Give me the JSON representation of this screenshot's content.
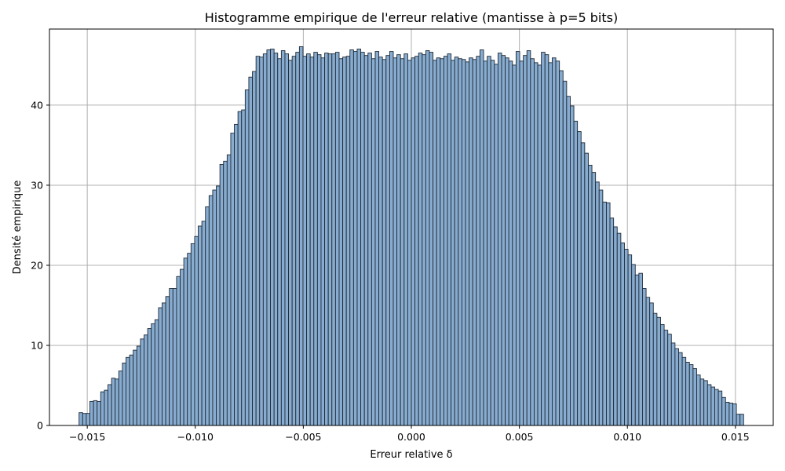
{
  "chart_data": {
    "type": "bar",
    "title": "Histogramme empirique de l'erreur relative (mantisse à p=5 bits)",
    "xlabel": "Erreur relative δ",
    "ylabel": "Densité empirique",
    "xlim": [
      -0.01675,
      0.01675
    ],
    "ylim": [
      0,
      49.5
    ],
    "xticks": [
      -0.015,
      -0.01,
      -0.005,
      0.0,
      0.005,
      0.01,
      0.015
    ],
    "xtick_labels": [
      "−0.015",
      "−0.010",
      "−0.005",
      "0.000",
      "0.005",
      "0.010",
      "0.015"
    ],
    "yticks": [
      0,
      10,
      20,
      30,
      40
    ],
    "ytick_labels": [
      "0",
      "10",
      "20",
      "30",
      "40"
    ],
    "grid": true,
    "bar_color": "#88acd0",
    "edge_color": "#1f2a36",
    "bin_range": [
      -0.01538,
      0.01538
    ],
    "values": [
      1.6,
      1.5,
      1.5,
      3.0,
      3.1,
      3.0,
      4.2,
      4.4,
      5.1,
      5.9,
      5.8,
      6.8,
      7.8,
      8.5,
      8.8,
      9.4,
      9.9,
      10.8,
      11.3,
      12.1,
      12.7,
      13.2,
      14.7,
      15.3,
      16.1,
      17.1,
      17.1,
      18.6,
      19.5,
      20.9,
      21.5,
      22.7,
      23.6,
      24.9,
      25.5,
      27.3,
      28.7,
      29.4,
      29.9,
      32.6,
      33.0,
      33.8,
      36.5,
      37.6,
      39.2,
      39.4,
      41.9,
      43.5,
      44.2,
      46.1,
      46.0,
      46.4,
      46.9,
      47.0,
      46.5,
      45.8,
      46.8,
      46.4,
      45.6,
      46.1,
      46.6,
      47.3,
      46.1,
      46.4,
      46.0,
      46.6,
      46.3,
      45.9,
      46.5,
      46.4,
      46.4,
      46.6,
      45.8,
      46.0,
      46.1,
      46.9,
      46.7,
      47.0,
      46.6,
      46.2,
      46.5,
      45.8,
      46.7,
      46.0,
      45.7,
      46.2,
      46.7,
      45.9,
      46.3,
      45.8,
      46.4,
      45.6,
      45.9,
      46.1,
      46.5,
      46.3,
      46.8,
      46.6,
      45.6,
      45.9,
      45.8,
      46.1,
      46.4,
      45.6,
      46.0,
      45.8,
      45.7,
      45.4,
      45.9,
      45.7,
      46.1,
      46.9,
      45.5,
      46.1,
      45.6,
      45.1,
      46.5,
      46.2,
      45.9,
      45.5,
      45.0,
      46.7,
      45.5,
      46.2,
      46.8,
      45.8,
      45.3,
      45.0,
      46.6,
      46.3,
      45.3,
      45.9,
      45.5,
      44.3,
      43.0,
      41.1,
      39.9,
      38.0,
      36.7,
      35.3,
      34.0,
      32.5,
      31.6,
      30.4,
      29.4,
      27.9,
      27.8,
      25.9,
      24.8,
      24.0,
      22.8,
      22.0,
      21.3,
      20.1,
      18.8,
      19.0,
      17.1,
      16.0,
      15.3,
      14.0,
      13.5,
      12.6,
      11.9,
      11.4,
      10.3,
      9.6,
      9.1,
      8.5,
      7.9,
      7.6,
      7.1,
      6.3,
      5.8,
      5.6,
      5.1,
      4.8,
      4.5,
      4.3,
      3.5,
      2.9,
      2.8,
      2.7,
      1.4,
      1.4
    ]
  }
}
